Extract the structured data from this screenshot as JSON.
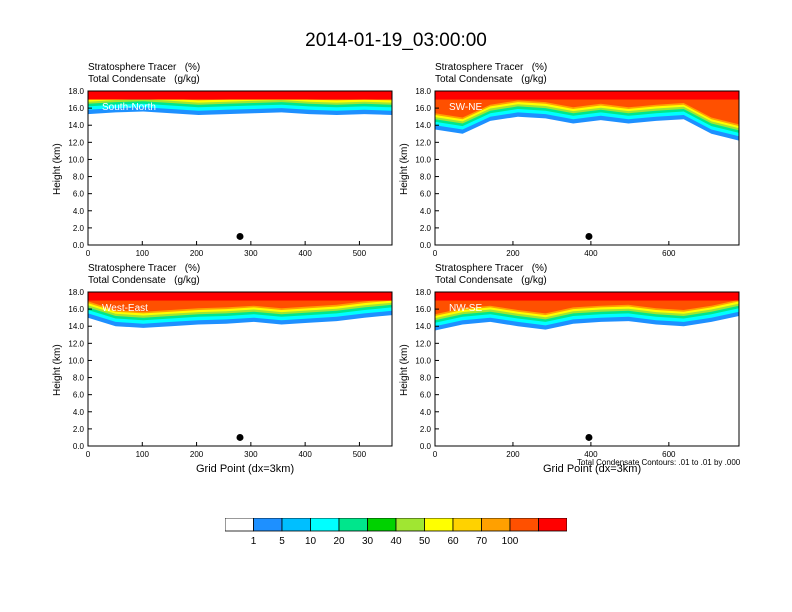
{
  "title": "2014-01-19_03:00:00",
  "chart_data": [
    {
      "type": "heatmap",
      "title_line1": "Stratosphere Tracer   (%)",
      "title_line2": "Total Condensate   (g/kg)",
      "section_label": "South-North",
      "ylabel": "Height (km)",
      "xlabel": "",
      "xlim": [
        0,
        560
      ],
      "ylim": [
        0,
        18
      ],
      "xticks": [
        0,
        100,
        200,
        300,
        400,
        500
      ],
      "yticks": [
        "0.0",
        "2.0",
        "4.0",
        "6.0",
        "8.0",
        "10.0",
        "12.0",
        "14.0",
        "16.0",
        "18.0"
      ],
      "marker_x": 280,
      "marker_y": 1.0,
      "tracer_bottom_km": [
        15.3,
        15.5,
        15.6,
        15.4,
        15.2,
        15.3,
        15.4,
        15.5,
        15.3,
        15.2,
        15.3,
        15.2
      ]
    },
    {
      "type": "heatmap",
      "title_line1": "Stratosphere Tracer   (%)",
      "title_line2": "Total Condensate   (g/kg)",
      "section_label": "SW-NE",
      "ylabel": "Height (km)",
      "xlabel": "",
      "xlim": [
        0,
        780
      ],
      "ylim": [
        0,
        18
      ],
      "xticks": [
        0,
        200,
        400,
        600
      ],
      "yticks": [
        "0.0",
        "2.0",
        "4.0",
        "6.0",
        "8.0",
        "10.0",
        "12.0",
        "14.0",
        "16.0",
        "18.0"
      ],
      "marker_x": 395,
      "marker_y": 1.0,
      "tracer_bottom_km": [
        13.5,
        13.0,
        14.5,
        15.0,
        14.8,
        14.2,
        14.6,
        14.2,
        14.5,
        14.7,
        13.0,
        12.2
      ]
    },
    {
      "type": "heatmap",
      "title_line1": "Stratosphere Tracer   (%)",
      "title_line2": "Total Condensate   (g/kg)",
      "section_label": "West-East",
      "ylabel": "Height (km)",
      "xlabel": "Grid Point (dx=3km)",
      "xlim": [
        0,
        560
      ],
      "ylim": [
        0,
        18
      ],
      "xticks": [
        0,
        100,
        200,
        300,
        400,
        500
      ],
      "yticks": [
        "0.0",
        "2.0",
        "4.0",
        "6.0",
        "8.0",
        "10.0",
        "12.0",
        "14.0",
        "16.0",
        "18.0"
      ],
      "marker_x": 280,
      "marker_y": 1.0,
      "tracer_bottom_km": [
        15.0,
        14.0,
        13.8,
        14.0,
        14.2,
        14.3,
        14.5,
        14.2,
        14.4,
        14.6,
        15.0,
        15.3
      ]
    },
    {
      "type": "heatmap",
      "title_line1": "Stratosphere Tracer   (%)",
      "title_line2": "Total Condensate   (g/kg)",
      "section_label": "NW-SE",
      "ylabel": "Height (km)",
      "xlabel": "Grid Point (dx=3km)",
      "xlim": [
        0,
        780
      ],
      "ylim": [
        0,
        18
      ],
      "xticks": [
        0,
        200,
        400,
        600
      ],
      "yticks": [
        "0.0",
        "2.0",
        "4.0",
        "6.0",
        "8.0",
        "10.0",
        "12.0",
        "14.0",
        "16.0",
        "18.0"
      ],
      "marker_x": 395,
      "marker_y": 1.0,
      "tracer_bottom_km": [
        13.5,
        14.2,
        14.5,
        14.0,
        13.6,
        14.3,
        14.5,
        14.6,
        14.2,
        14.0,
        14.5,
        15.2
      ],
      "contour_note": "Total Condensate Contours: .01 to .01 by .000"
    }
  ],
  "colorbar": {
    "colors": [
      "#ffffff",
      "#1e90ff",
      "#00bfff",
      "#00ffff",
      "#00e68c",
      "#00d200",
      "#a0e632",
      "#ffff00",
      "#ffd200",
      "#ffa000",
      "#ff5000",
      "#ff0000"
    ],
    "labels": [
      "1",
      "5",
      "10",
      "20",
      "30",
      "40",
      "50",
      "60",
      "70",
      "100"
    ]
  }
}
